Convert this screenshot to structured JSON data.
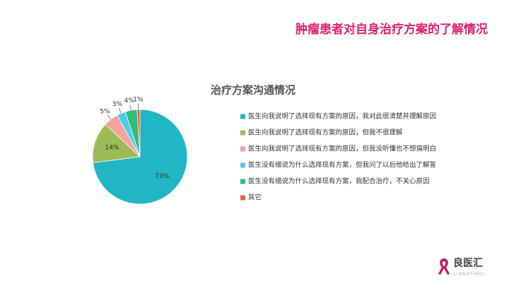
{
  "slide_title": "肿瘤患者对自身治疗方案的了解情况",
  "logo": {
    "name": "良医汇",
    "subtitle": "LIANGYIHUI"
  },
  "chart_data": {
    "type": "pie",
    "title": "治疗方案沟通情况",
    "categories": [
      "医生向我说明了选择现有方案的原因，我对此很清楚并理解原因",
      "医生向我说明了选择现有方案的原因，但我不很理解",
      "医生向我说明了选择现有方案的原因，但我没听懂也不想搞明白",
      "医生没有细说为什么选择现有方案，但我问了以后他给出了解答",
      "医生没有细说为什么选择现有方案，我配合治疗，不关心原因",
      "其它"
    ],
    "values": [
      73,
      14,
      5,
      3,
      4,
      1
    ],
    "value_labels": [
      "73%",
      "14%",
      "5%",
      "3%",
      "4%",
      "1%"
    ],
    "colors": [
      "#22b6c4",
      "#9cbb59",
      "#f5a19c",
      "#4fcbe9",
      "#2fbd78",
      "#e2643c"
    ],
    "legend": "right"
  }
}
